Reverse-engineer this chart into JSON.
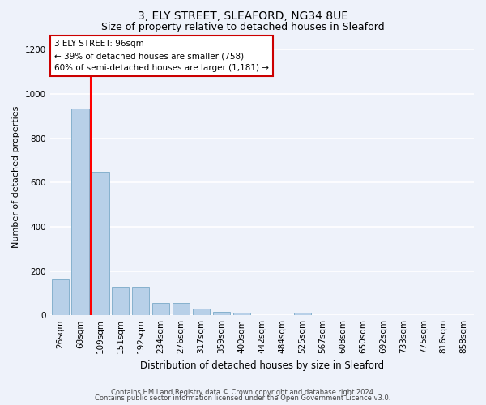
{
  "title1": "3, ELY STREET, SLEAFORD, NG34 8UE",
  "title2": "Size of property relative to detached houses in Sleaford",
  "xlabel": "Distribution of detached houses by size in Sleaford",
  "ylabel": "Number of detached properties",
  "bin_labels": [
    "26sqm",
    "68sqm",
    "109sqm",
    "151sqm",
    "192sqm",
    "234sqm",
    "276sqm",
    "317sqm",
    "359sqm",
    "400sqm",
    "442sqm",
    "484sqm",
    "525sqm",
    "567sqm",
    "608sqm",
    "650sqm",
    "692sqm",
    "733sqm",
    "775sqm",
    "816sqm",
    "858sqm"
  ],
  "bar_values": [
    160,
    935,
    650,
    130,
    130,
    55,
    55,
    30,
    15,
    10,
    0,
    0,
    13,
    0,
    0,
    0,
    0,
    0,
    0,
    0,
    0
  ],
  "bar_color": "#b8d0e8",
  "bar_edge_color": "#7aaac8",
  "annotation_text": "3 ELY STREET: 96sqm\n← 39% of detached houses are smaller (758)\n60% of semi-detached houses are larger (1,181) →",
  "annotation_box_color": "#ffffff",
  "annotation_box_edge": "#cc0000",
  "red_line_x": 1.5,
  "ylim": [
    0,
    1250
  ],
  "yticks": [
    0,
    200,
    400,
    600,
    800,
    1000,
    1200
  ],
  "footer1": "Contains HM Land Registry data © Crown copyright and database right 2024.",
  "footer2": "Contains public sector information licensed under the Open Government Licence v3.0.",
  "bg_color": "#eef2fa",
  "grid_color": "#ffffff",
  "title1_fontsize": 10,
  "title2_fontsize": 9,
  "ylabel_fontsize": 8,
  "xlabel_fontsize": 8.5,
  "tick_fontsize": 7.5,
  "annot_fontsize": 7.5,
  "footer_fontsize": 6
}
